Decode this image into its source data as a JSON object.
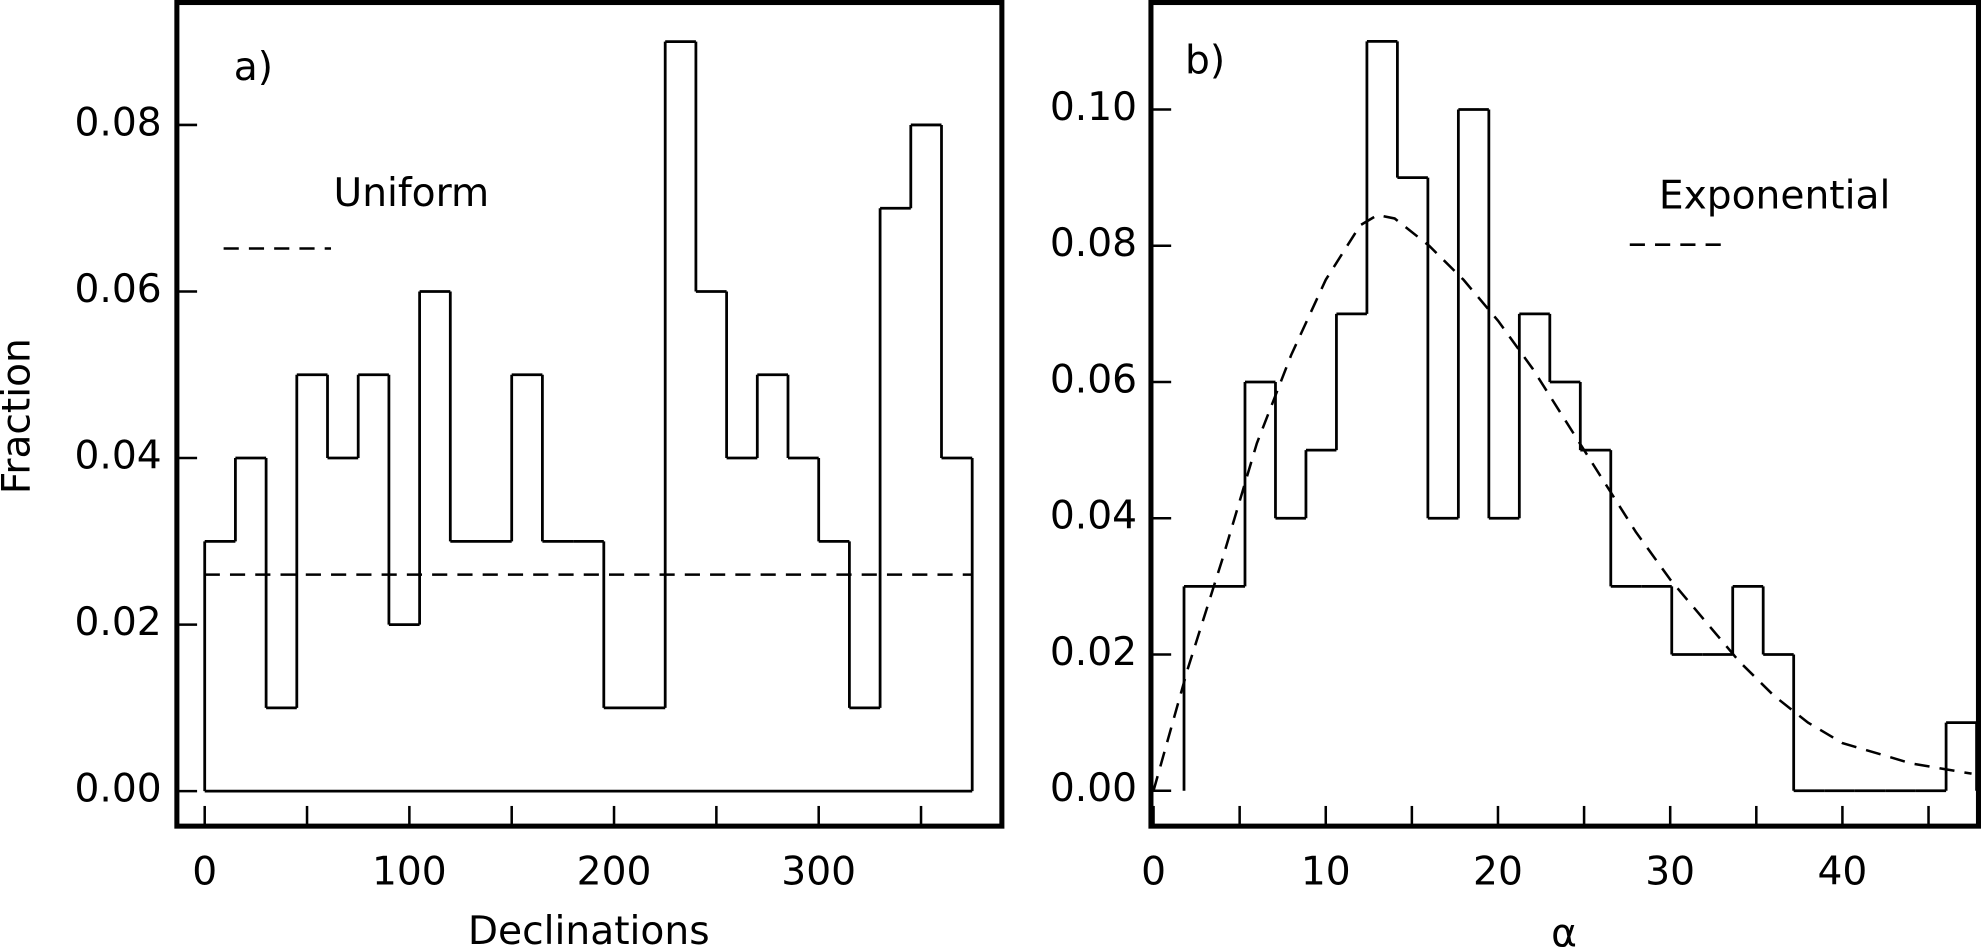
{
  "chart_data": [
    {
      "type": "histogram",
      "panel_label": "a)",
      "x_label": "Declinations",
      "y_label": "Fraction",
      "color": "#000000",
      "bins": [
        0,
        15,
        30,
        45,
        60,
        75,
        90,
        105,
        120,
        135,
        150,
        165,
        180,
        195,
        210,
        225,
        240,
        255,
        270,
        285,
        300,
        315,
        330,
        345,
        360,
        375
      ],
      "values": [
        0.03,
        0.04,
        0.01,
        0.05,
        0.04,
        0.05,
        0.02,
        0.06,
        0.03,
        0.03,
        0.05,
        0.03,
        0.03,
        0.01,
        0.01,
        0.09,
        0.06,
        0.04,
        0.05,
        0.04,
        0.03,
        0.01,
        0.07,
        0.08,
        0.04
      ],
      "baseline": true,
      "lines": [
        {
          "name": "Uniform",
          "color": "#000000",
          "dashed": true,
          "x": [
            0,
            375
          ],
          "values": [
            0.026,
            0.026
          ]
        }
      ],
      "xlim": [
        -13.6,
        389.5
      ],
      "ylim": [
        -0.0042,
        0.0947
      ],
      "xticks": [
        0,
        100,
        200,
        300
      ],
      "minor_xticks": [
        50,
        150,
        250,
        350
      ],
      "yticks": [
        {
          "value": 0,
          "label": "0.00"
        },
        {
          "value": 0.02,
          "label": "0.02"
        },
        {
          "value": 0.04,
          "label": "0.04"
        },
        {
          "value": 0.06,
          "label": "0.06"
        },
        {
          "value": 0.08,
          "label": "0.08"
        }
      ]
    },
    {
      "type": "histogram",
      "panel_label": "b)",
      "x_label": "α",
      "color": "#000000",
      "bins": [
        1.77,
        3.54,
        5.31,
        7.08,
        8.85,
        10.62,
        12.39,
        14.16,
        15.93,
        17.7,
        19.47,
        21.24,
        23.01,
        24.78,
        26.55,
        28.32,
        30.09,
        31.86,
        33.63,
        35.4,
        37.17,
        38.94,
        40.71,
        42.48,
        44.25,
        46.02,
        47.79
      ],
      "values": [
        0.03,
        0.03,
        0.06,
        0.04,
        0.05,
        0.07,
        0.11,
        0.09,
        0.04,
        0.1,
        0.04,
        0.07,
        0.06,
        0.05,
        0.03,
        0.03,
        0.02,
        0.02,
        0.03,
        0.02,
        0,
        0,
        0,
        0,
        0,
        0.01
      ],
      "baseline": false,
      "lines": [
        {
          "name": "Exponential",
          "color": "#000000",
          "dashed": true,
          "x": [
            0,
            2,
            4,
            6,
            8,
            10,
            12,
            13,
            14,
            16,
            18,
            20,
            22,
            24,
            26,
            28,
            30,
            32,
            34,
            36,
            38,
            40,
            44,
            47.5
          ],
          "values": [
            0,
            0.018,
            0.034,
            0.051,
            0.064,
            0.075,
            0.083,
            0.0845,
            0.084,
            0.08,
            0.075,
            0.069,
            0.062,
            0.054,
            0.046,
            0.038,
            0.031,
            0.025,
            0.019,
            0.014,
            0.01,
            0.007,
            0.004,
            0.0025
          ]
        }
      ],
      "xlim": [
        -0.15,
        47.9
      ],
      "ylim": [
        -0.0052,
        0.1157
      ],
      "xticks": [
        0,
        10,
        20,
        30,
        40
      ],
      "minor_xticks": [
        5,
        15,
        25,
        35,
        45
      ],
      "yticks": [
        {
          "value": 0,
          "label": "0.00"
        },
        {
          "value": 0.02,
          "label": "0.02"
        },
        {
          "value": 0.04,
          "label": "0.04"
        },
        {
          "value": 0.06,
          "label": "0.06"
        },
        {
          "value": 0.08,
          "label": "0.08"
        },
        {
          "value": 0.1,
          "label": "0.10"
        }
      ]
    }
  ]
}
